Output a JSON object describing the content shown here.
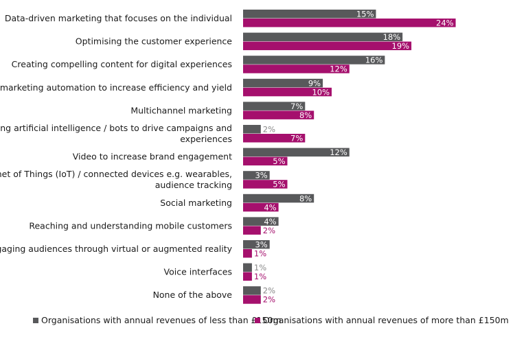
{
  "chart_data": {
    "type": "bar",
    "orientation": "horizontal",
    "categories": [
      [
        "Data-driven marketing that focuses on the individual"
      ],
      [
        "Optimising the customer experience"
      ],
      [
        "Creating compelling content for digital experiences"
      ],
      [
        "Using marketing automation to increase efficiency and yield"
      ],
      [
        "Multichannel marketing"
      ],
      [
        "Utilising artificial intelligence / bots to drive campaigns and",
        "experiences"
      ],
      [
        "Video to increase brand engagement"
      ],
      [
        "Internet of Things (IoT) / connected devices e.g. wearables,",
        "audience tracking"
      ],
      [
        "Social marketing"
      ],
      [
        "Reaching and understanding mobile customers"
      ],
      [
        "Engaging audiences through virtual or augmented reality"
      ],
      [
        "Voice interfaces"
      ],
      [
        "None of the above"
      ]
    ],
    "series": [
      {
        "name": "Organisations with annual revenues of less than £150m",
        "color": "#58595b",
        "values": [
          15,
          18,
          16,
          9,
          7,
          2,
          12,
          3,
          8,
          4,
          3,
          1,
          2
        ],
        "labels": [
          "15%",
          "18%",
          "16%",
          "9%",
          "7%",
          "2%",
          "12%",
          "3%",
          "8%",
          "4%",
          "3%",
          "1%",
          "2%"
        ]
      },
      {
        "name": "Organisations with annual revenues of more than £150m",
        "color": "#a5106d",
        "values": [
          24,
          19,
          12,
          10,
          8,
          7,
          5,
          5,
          4,
          2,
          1,
          1,
          2
        ],
        "labels": [
          "24%",
          "19%",
          "12%",
          "10%",
          "8%",
          "7%",
          "5%",
          "5%",
          "4%",
          "2%",
          "1%",
          "1%",
          "2%"
        ]
      }
    ],
    "xlim": [
      0,
      25
    ],
    "legend": [
      "Organisations with annual revenues of less than £150m",
      "Organisations with annual revenues of more than £150m"
    ],
    "legend_position": "bottom"
  }
}
